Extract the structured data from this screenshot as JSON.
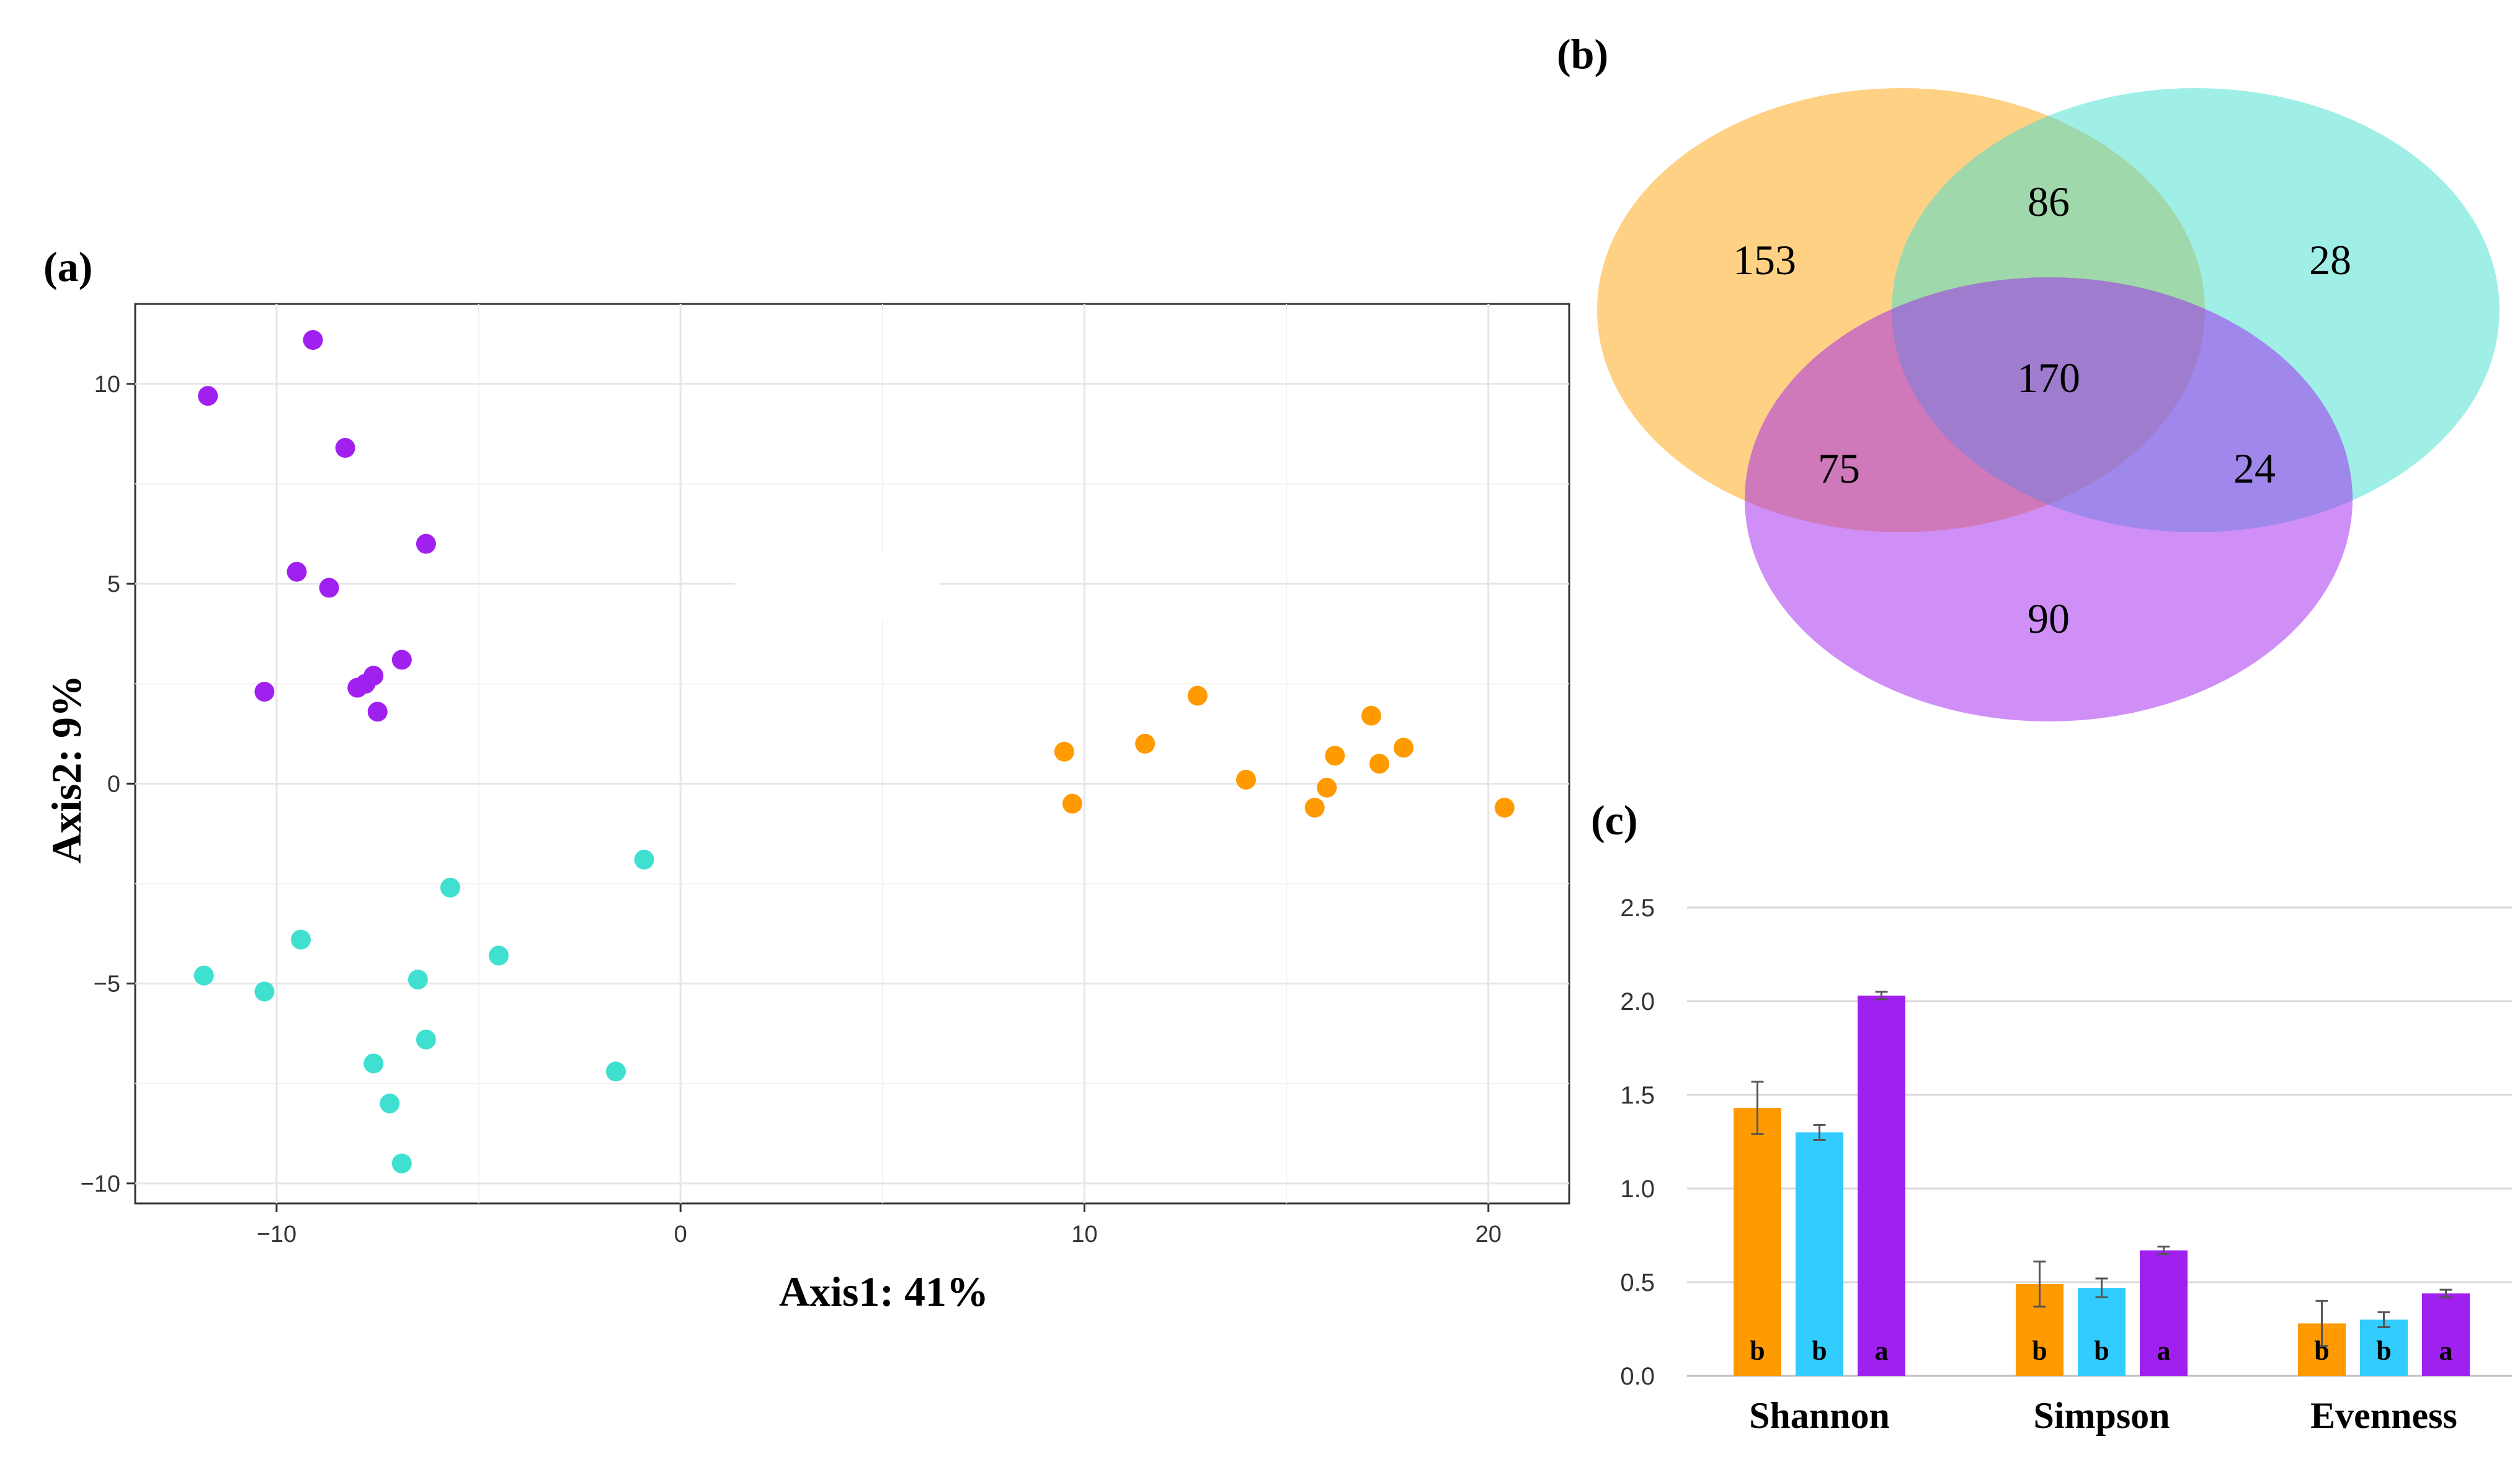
{
  "colors": {
    "orange": "#FF9A00",
    "teal": "#40E0D0",
    "purple": "#A020F0",
    "bar_blue": "#33CCFF"
  },
  "chart_data": [
    {
      "type": "scatter",
      "panel_label": "(a)",
      "xlabel": "Axis1: 41%",
      "ylabel": "Axis2: 9%",
      "xlim": [
        -13.5,
        22
      ],
      "ylim": [
        -10.5,
        12
      ],
      "xticks": [
        -10,
        0,
        10,
        20
      ],
      "xtick_labels": [
        "−10",
        "0",
        "10",
        "20"
      ],
      "yticks": [
        -10,
        -5,
        0,
        5,
        10
      ],
      "ytick_labels": [
        "−10",
        "−5",
        "0",
        "5",
        "10"
      ],
      "grid": true,
      "series": [
        {
          "name": "purple",
          "color": "#A020F0",
          "points": [
            [
              -9.1,
              11.1
            ],
            [
              -11.7,
              9.7
            ],
            [
              -8.3,
              8.4
            ],
            [
              -6.3,
              6.0
            ],
            [
              -9.5,
              5.3
            ],
            [
              -8.7,
              4.9
            ],
            [
              -6.9,
              3.1
            ],
            [
              -7.6,
              2.7
            ],
            [
              -7.8,
              2.5
            ],
            [
              -8.0,
              2.4
            ],
            [
              -10.3,
              2.3
            ],
            [
              -7.5,
              1.8
            ]
          ]
        },
        {
          "name": "orange",
          "color": "#FF9A00",
          "points": [
            [
              12.8,
              2.2
            ],
            [
              17.1,
              1.7
            ],
            [
              11.5,
              1.0
            ],
            [
              17.9,
              0.9
            ],
            [
              9.5,
              0.8
            ],
            [
              16.2,
              0.7
            ],
            [
              17.3,
              0.5
            ],
            [
              14.0,
              0.1
            ],
            [
              16.0,
              -0.1
            ],
            [
              9.7,
              -0.5
            ],
            [
              15.7,
              -0.6
            ],
            [
              20.4,
              -0.6
            ]
          ]
        },
        {
          "name": "teal",
          "color": "#40E0D0",
          "points": [
            [
              -0.9,
              -1.9
            ],
            [
              -5.7,
              -2.6
            ],
            [
              -9.4,
              -3.9
            ],
            [
              -4.5,
              -4.3
            ],
            [
              -11.8,
              -4.8
            ],
            [
              -6.5,
              -4.9
            ],
            [
              -10.3,
              -5.2
            ],
            [
              -6.3,
              -6.4
            ],
            [
              -7.6,
              -7.0
            ],
            [
              -1.6,
              -7.2
            ],
            [
              -7.2,
              -8.0
            ],
            [
              -6.9,
              -9.5
            ]
          ]
        }
      ]
    },
    {
      "type": "venn",
      "panel_label": "(b)",
      "sets": [
        "orange",
        "teal",
        "purple"
      ],
      "regions": {
        "orange_only": "153",
        "teal_only": "28",
        "purple_only": "90",
        "orange_teal": "86",
        "orange_purple": "75",
        "teal_purple": "24",
        "all": "170"
      }
    },
    {
      "type": "bar",
      "panel_label": "(c)",
      "categories": [
        "Shannon",
        "Simpson",
        "Evenness"
      ],
      "ylim": [
        0,
        2.5
      ],
      "yticks": [
        0,
        0.5,
        1.0,
        1.5,
        2.0,
        2.5
      ],
      "ytick_labels": [
        "0.0",
        "0.5",
        "1.0",
        "1.5",
        "2.0",
        "2.5"
      ],
      "series": [
        {
          "name": "orange",
          "color": "#FF9A00",
          "values": [
            1.43,
            0.49,
            0.28
          ],
          "errors": [
            0.14,
            0.12,
            0.12
          ],
          "letters": [
            "b",
            "b",
            "b"
          ]
        },
        {
          "name": "blue",
          "color": "#33CCFF",
          "values": [
            1.3,
            0.47,
            0.3
          ],
          "errors": [
            0.04,
            0.05,
            0.04
          ],
          "letters": [
            "b",
            "b",
            "b"
          ]
        },
        {
          "name": "purple",
          "color": "#A020F0",
          "values": [
            2.03,
            0.67,
            0.44
          ],
          "errors": [
            0.02,
            0.02,
            0.02
          ],
          "letters": [
            "a",
            "a",
            "a"
          ]
        }
      ]
    }
  ]
}
